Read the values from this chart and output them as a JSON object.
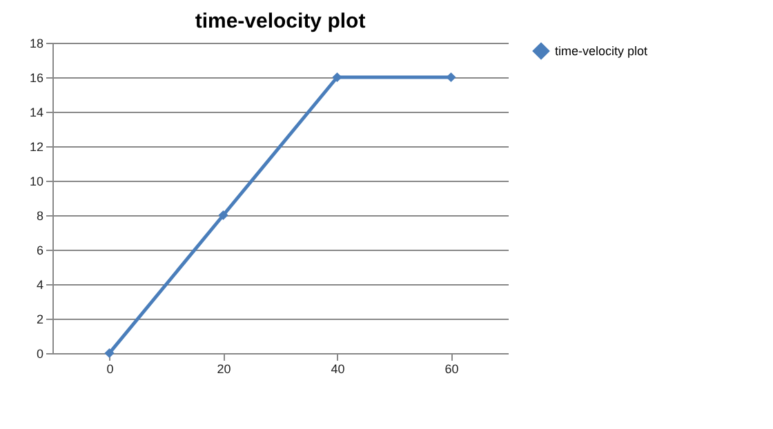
{
  "chart_data": {
    "type": "line",
    "title": "time-velocity plot",
    "categories": [
      "0",
      "20",
      "40",
      "60"
    ],
    "series": [
      {
        "name": "time-velocity plot",
        "color": "#4a7ebb",
        "values": [
          0,
          8,
          16,
          16
        ]
      }
    ],
    "ylim": [
      0,
      18
    ],
    "yticks": [
      0,
      2,
      4,
      6,
      8,
      10,
      12,
      14,
      16,
      18
    ],
    "grid": "y",
    "legend": "right",
    "marker": "diamond",
    "line_style": "solid"
  }
}
